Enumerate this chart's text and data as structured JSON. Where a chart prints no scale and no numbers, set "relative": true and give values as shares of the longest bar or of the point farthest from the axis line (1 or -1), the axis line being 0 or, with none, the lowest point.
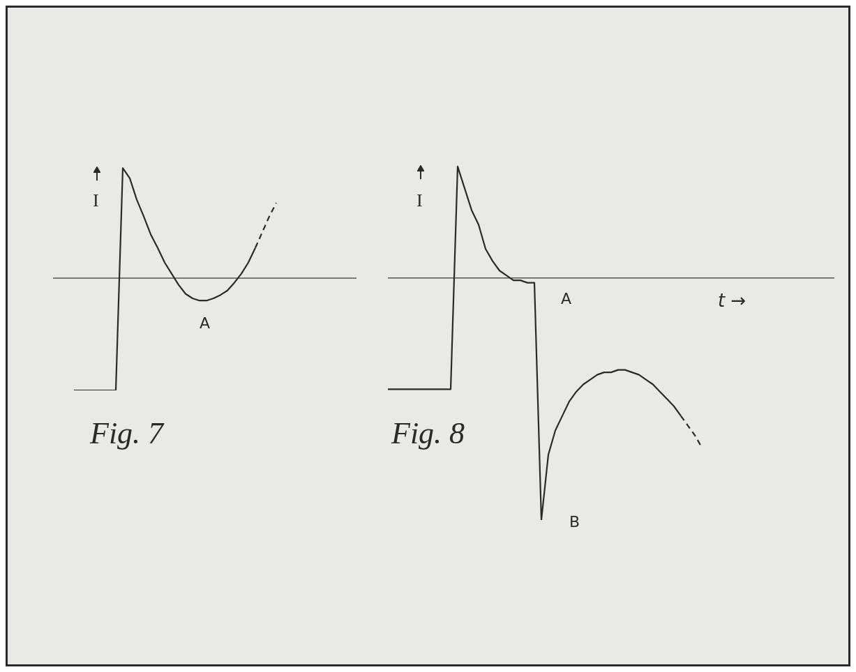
{
  "chart_data": [
    {
      "type": "line",
      "relative": true,
      "title": "Fig. 7",
      "ylabel": "I",
      "annotations": [
        "A"
      ],
      "categories": [
        null,
        null,
        null,
        null,
        null,
        null,
        null,
        null,
        null,
        null,
        null,
        null,
        null,
        null,
        null,
        null,
        null,
        null,
        null,
        null,
        null,
        null,
        null,
        null,
        null,
        null,
        null,
        null,
        null,
        null
      ],
      "series": [
        {
          "color": "#2a2a2a",
          "line_style": "solid",
          "values": [
            -1,
            -1,
            -1,
            -1,
            -1,
            -1,
            -1,
            0.98,
            0.89,
            0.7,
            0.55,
            0.39,
            0.27,
            0.14,
            0.04,
            -0.06,
            -0.14,
            -0.18,
            -0.2,
            -0.2,
            -0.18,
            -0.15,
            -0.11,
            -0.04,
            0.04,
            0.14,
            0.27,
            null,
            null,
            null
          ]
        },
        {
          "color": "#2a2a2a",
          "line_style": "dashed",
          "values": [
            null,
            null,
            null,
            null,
            null,
            null,
            null,
            null,
            null,
            null,
            null,
            null,
            null,
            null,
            null,
            null,
            null,
            null,
            null,
            null,
            null,
            null,
            null,
            null,
            null,
            null,
            0.27,
            0.41,
            0.55,
            0.67
          ]
        }
      ]
    },
    {
      "type": "line",
      "relative": true,
      "title": "Fig. 8",
      "ylabel": "I",
      "xlabel": "t →",
      "annotations": [
        "A",
        "B"
      ],
      "categories": [
        null,
        null,
        null,
        null,
        null,
        null,
        null,
        null,
        null,
        null,
        null,
        null,
        null,
        null,
        null,
        null,
        null,
        null,
        null,
        null,
        null,
        null,
        null,
        null,
        null,
        null,
        null,
        null,
        null,
        null,
        null,
        null,
        null,
        null,
        null,
        null,
        null,
        null,
        null,
        null,
        null,
        null,
        null,
        null,
        null,
        null
      ],
      "series": [
        {
          "color": "#2a2a2a",
          "line_style": "solid",
          "values": [
            -0.46,
            -0.46,
            -0.46,
            -0.46,
            -0.46,
            -0.46,
            -0.46,
            -0.46,
            -0.46,
            -0.46,
            0.46,
            0.37,
            0.28,
            0.22,
            0.12,
            0.07,
            0.03,
            0.01,
            -0.01,
            -0.01,
            -0.02,
            -0.02,
            -1,
            -0.73,
            -0.63,
            -0.57,
            -0.51,
            -0.47,
            -0.44,
            -0.42,
            -0.4,
            -0.39,
            -0.39,
            -0.38,
            -0.38,
            -0.39,
            -0.4,
            -0.42,
            -0.44,
            -0.47,
            -0.5,
            -0.53,
            -0.57,
            null,
            null,
            null
          ]
        },
        {
          "color": "#2a2a2a",
          "line_style": "dashed",
          "values": [
            null,
            null,
            null,
            null,
            null,
            null,
            null,
            null,
            null,
            null,
            null,
            null,
            null,
            null,
            null,
            null,
            null,
            null,
            null,
            null,
            null,
            null,
            null,
            null,
            null,
            null,
            null,
            null,
            null,
            null,
            null,
            null,
            null,
            null,
            null,
            null,
            null,
            null,
            null,
            null,
            null,
            null,
            -0.57,
            -0.61,
            -0.65,
            -0.7
          ]
        }
      ]
    }
  ]
}
